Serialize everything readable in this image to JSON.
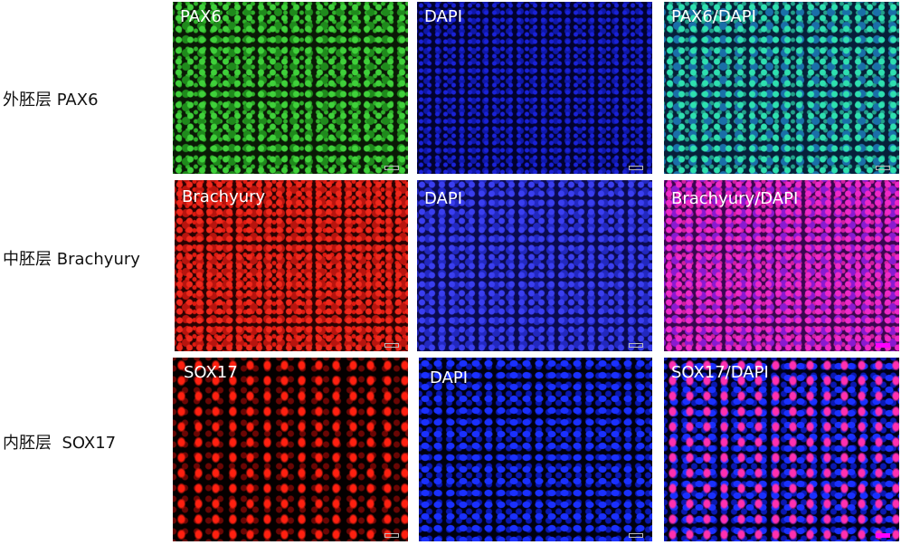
{
  "rows": [
    {
      "label": "外胚层 PAX6",
      "panels": [
        "PAX6",
        "DAPI",
        "PAX6/DAPI"
      ]
    },
    {
      "label": "中胚层 Brachyury",
      "panels": [
        "Brachyury",
        "DAPI",
        "Brachyury/DAPI"
      ]
    },
    {
      "label": "内胚层  SOX17",
      "panels": [
        "SOX17",
        "DAPI",
        "SOX17/DAPI"
      ]
    }
  ],
  "colors": {
    "pax6": "#3fd13a",
    "dapi": "#1a22d8",
    "brachyury": "#f0281c",
    "sox17": "#ff2010",
    "merge_magenta": "#f028c8"
  }
}
